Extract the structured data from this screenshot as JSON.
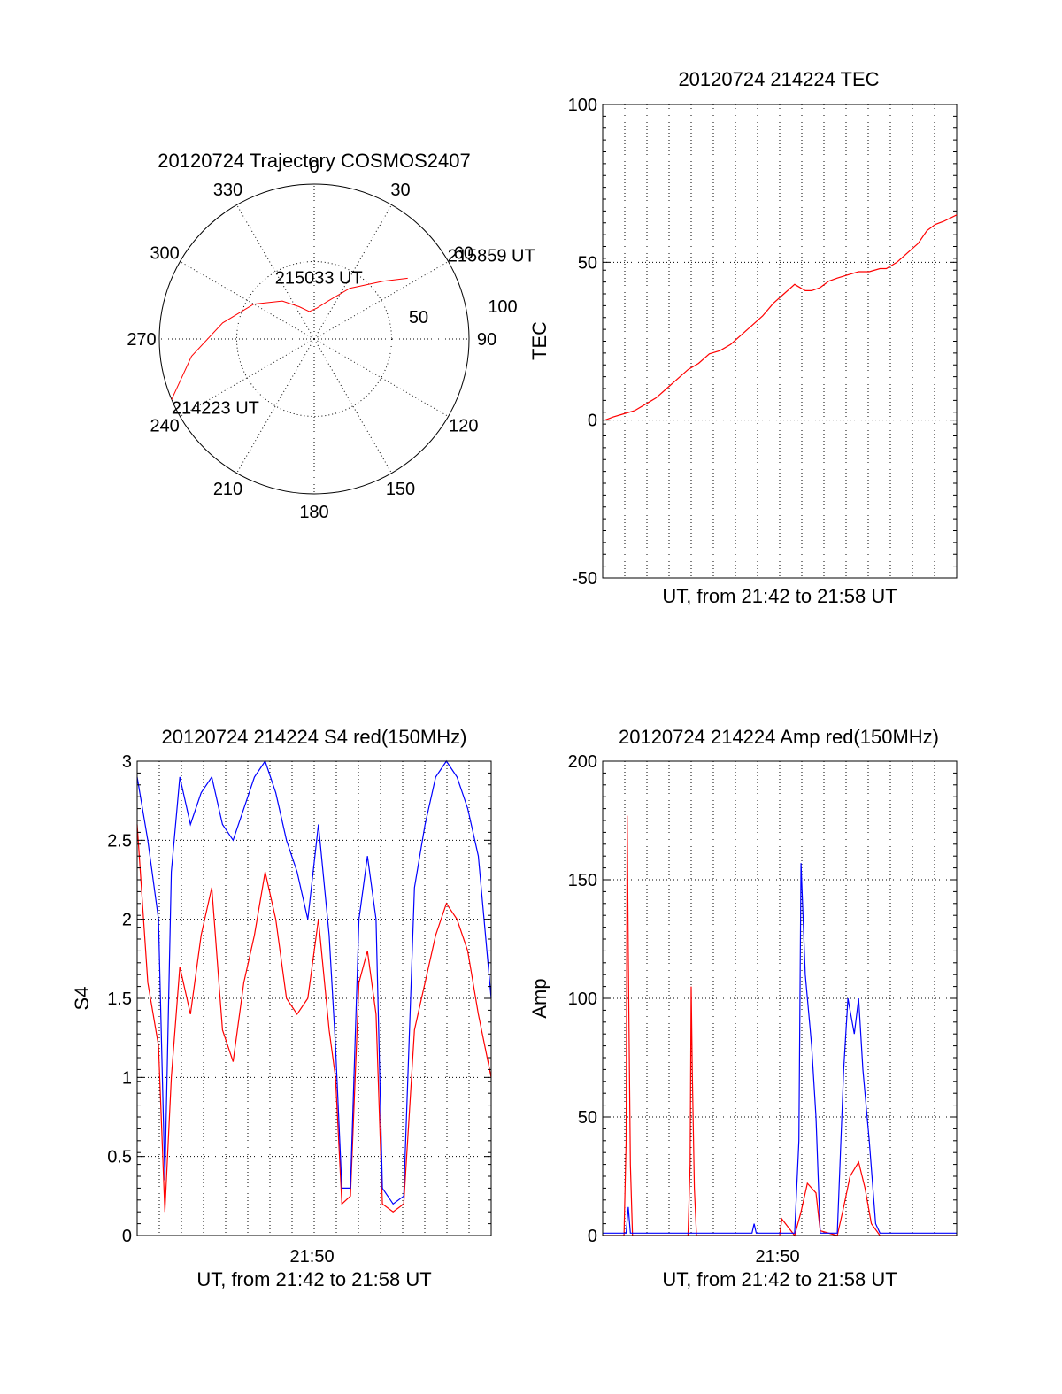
{
  "chart_data": [
    {
      "type": "polar",
      "title": "20120724 Trajectory COSMOS2407",
      "azimuth_labels": [
        "0",
        "30",
        "60",
        "90",
        "120",
        "150",
        "180",
        "210",
        "240",
        "270",
        "300",
        "330"
      ],
      "radius_labels": [
        "50",
        "100"
      ],
      "series": [
        {
          "color": "#ff0000",
          "points": [
            [
              247,
              102
            ],
            [
              262,
              80
            ],
            [
              280,
              60
            ],
            [
              300,
              45
            ],
            [
              320,
              32
            ],
            [
              335,
              23
            ],
            [
              350,
              18
            ],
            [
              5,
              20
            ],
            [
              20,
              26
            ],
            [
              35,
              40
            ],
            [
              50,
              58
            ],
            [
              57,
              72
            ]
          ]
        }
      ],
      "annotations": [
        {
          "label": "214223 UT",
          "az": 247,
          "r": 100
        },
        {
          "label": "215033 UT",
          "az": 358,
          "r": 45
        },
        {
          "label": "215859 UT",
          "az": 57,
          "r": 100
        }
      ]
    },
    {
      "type": "line",
      "title": "20120724 214224 TEC",
      "xlabel": "UT, from 21:42 to 21:58 UT",
      "ylabel": "TEC",
      "xlim": [
        0,
        16.6
      ],
      "ylim": [
        -50,
        100
      ],
      "yticks": [
        "100",
        "50",
        "0",
        "-50"
      ],
      "series": [
        {
          "color": "#ff0000",
          "x": [
            0.1,
            0.5,
            1.0,
            1.5,
            2.0,
            2.5,
            3.0,
            3.5,
            4.0,
            4.5,
            5.0,
            5.5,
            6.0,
            6.5,
            7.0,
            7.5,
            8.0,
            8.5,
            9.0,
            9.5,
            9.8,
            10.2,
            10.6,
            11.0,
            11.5,
            12.0,
            12.5,
            13.0,
            13.3,
            13.8,
            14.3,
            14.8,
            15.2,
            15.6,
            16.0,
            16.6
          ],
          "y": [
            0,
            1,
            2,
            3,
            5,
            7,
            10,
            13,
            16,
            18,
            21,
            22,
            24,
            27,
            30,
            33,
            37,
            40,
            43,
            41,
            41,
            42,
            44,
            45,
            46,
            47,
            47,
            48,
            48,
            50,
            53,
            56,
            60,
            62,
            63,
            65
          ]
        }
      ]
    },
    {
      "type": "line",
      "title": "20120724 214224 S4 red(150MHz)",
      "xlabel": "UT, from 21:42 to 21:58 UT",
      "ylabel": "S4",
      "xlim": [
        0,
        16.6
      ],
      "ylim": [
        0,
        3
      ],
      "xticks": [
        {
          "value": 8.2,
          "label": "21:50"
        }
      ],
      "yticks": [
        "3",
        "2.5",
        "2",
        "1.5",
        "1",
        "0.5",
        "0"
      ],
      "series": [
        {
          "color": "#ff0000",
          "x": [
            0.0,
            0.5,
            1.0,
            1.3,
            1.6,
            2.0,
            2.5,
            3.0,
            3.5,
            4.0,
            4.5,
            5.0,
            5.5,
            6.0,
            6.5,
            7.0,
            7.5,
            8.0,
            8.5,
            9.0,
            9.3,
            9.6,
            10.0,
            10.4,
            10.8,
            11.2,
            11.5,
            12.0,
            12.5,
            13.0,
            13.5,
            14.0,
            14.5,
            15.0,
            15.5,
            16.0,
            16.6
          ],
          "y": [
            2.6,
            1.6,
            1.2,
            0.15,
            1.0,
            1.7,
            1.4,
            1.9,
            2.2,
            1.3,
            1.1,
            1.6,
            1.9,
            2.3,
            2.0,
            1.5,
            1.4,
            1.5,
            2.0,
            1.3,
            1.0,
            0.2,
            0.25,
            1.6,
            1.8,
            1.4,
            0.2,
            0.15,
            0.2,
            1.3,
            1.6,
            1.9,
            2.1,
            2.0,
            1.8,
            1.4,
            1.0
          ]
        },
        {
          "color": "#0000ff",
          "x": [
            0.0,
            0.5,
            1.0,
            1.3,
            1.6,
            2.0,
            2.5,
            3.0,
            3.5,
            4.0,
            4.5,
            5.0,
            5.5,
            6.0,
            6.5,
            7.0,
            7.5,
            8.0,
            8.5,
            9.0,
            9.3,
            9.6,
            10.0,
            10.4,
            10.8,
            11.2,
            11.5,
            12.0,
            12.5,
            13.0,
            13.5,
            14.0,
            14.5,
            15.0,
            15.5,
            16.0,
            16.6
          ],
          "y": [
            2.9,
            2.5,
            2.0,
            0.35,
            2.3,
            2.9,
            2.6,
            2.8,
            2.9,
            2.6,
            2.5,
            2.7,
            2.9,
            3.0,
            2.8,
            2.5,
            2.3,
            2.0,
            2.6,
            1.9,
            1.2,
            0.3,
            0.3,
            2.0,
            2.4,
            2.0,
            0.3,
            0.2,
            0.25,
            2.2,
            2.6,
            2.9,
            3.0,
            2.9,
            2.7,
            2.4,
            1.5
          ]
        }
      ]
    },
    {
      "type": "line",
      "title": "20120724 214224 Amp red(150MHz)",
      "xlabel": "UT, from 21:42 to 21:58 UT",
      "ylabel": "Amp",
      "xlim": [
        0,
        16.6
      ],
      "ylim": [
        0,
        200
      ],
      "xticks": [
        {
          "value": 8.2,
          "label": "21:50"
        }
      ],
      "yticks": [
        "200",
        "150",
        "100",
        "50",
        "0"
      ],
      "series": [
        {
          "color": "#ff0000",
          "x": [
            0.0,
            1.0,
            1.1,
            1.15,
            1.2,
            1.3,
            1.4,
            4.0,
            4.1,
            4.15,
            4.2,
            4.3,
            4.4,
            8.3,
            8.4,
            9.0,
            9.3,
            9.6,
            10.0,
            10.2,
            11.0,
            11.3,
            11.6,
            12.0,
            12.3,
            12.6,
            13.0,
            16.6
          ],
          "y": [
            0,
            0,
            40,
            177,
            120,
            30,
            0,
            0,
            30,
            105,
            70,
            20,
            0,
            0,
            7,
            0,
            10,
            22,
            18,
            2,
            0,
            12,
            25,
            31,
            20,
            5,
            0,
            0
          ]
        },
        {
          "color": "#0000ff",
          "x": [
            0.0,
            1.1,
            1.2,
            1.3,
            7.0,
            7.1,
            7.2,
            9.0,
            9.2,
            9.3,
            9.5,
            9.8,
            10.0,
            10.2,
            11.0,
            11.3,
            11.5,
            11.8,
            12.0,
            12.2,
            12.5,
            12.8,
            13.0,
            16.6
          ],
          "y": [
            1,
            1,
            12,
            1,
            1,
            5,
            1,
            1,
            40,
            157,
            110,
            80,
            50,
            1,
            1,
            70,
            100,
            85,
            100,
            70,
            40,
            5,
            1,
            1
          ]
        }
      ]
    }
  ]
}
